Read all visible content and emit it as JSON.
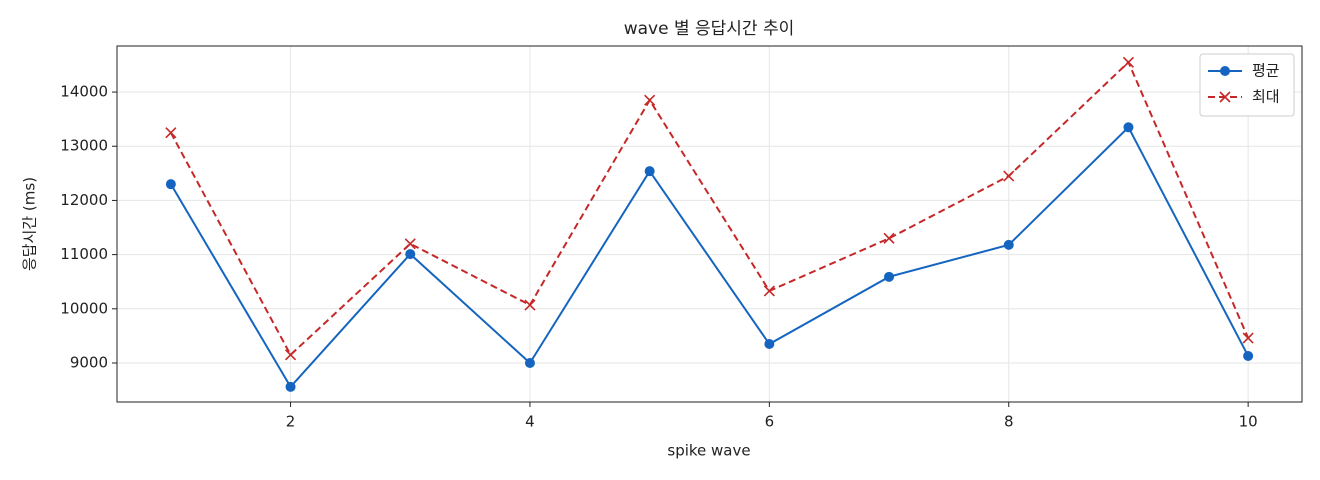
{
  "chart_data": {
    "type": "line",
    "title": "wave 별 응답시간 추이",
    "x_label": "spike wave",
    "y_label": "응답시간 (ms)",
    "x": [
      1,
      2,
      3,
      4,
      5,
      6,
      7,
      8,
      9,
      10
    ],
    "series": [
      {
        "name": "평균",
        "color": "#1565c0",
        "marker": "o",
        "linestyle": "solid",
        "values": [
          12300,
          8560,
          11010,
          9000,
          12540,
          9350,
          10590,
          11180,
          13350,
          9130
        ]
      },
      {
        "name": "최대",
        "color": "#c62828",
        "marker": "x",
        "linestyle": "dashed",
        "values": [
          13250,
          9150,
          11200,
          10070,
          13850,
          10330,
          11300,
          12450,
          14550,
          9460
        ]
      }
    ],
    "xlim": [
      0.55,
      10.45
    ],
    "xticks": [
      2,
      4,
      6,
      8,
      10
    ],
    "ylim": [
      8280,
      14850
    ],
    "yticks": [
      9000,
      10000,
      11000,
      12000,
      13000,
      14000
    ],
    "grid": true,
    "legend": "upper right"
  }
}
